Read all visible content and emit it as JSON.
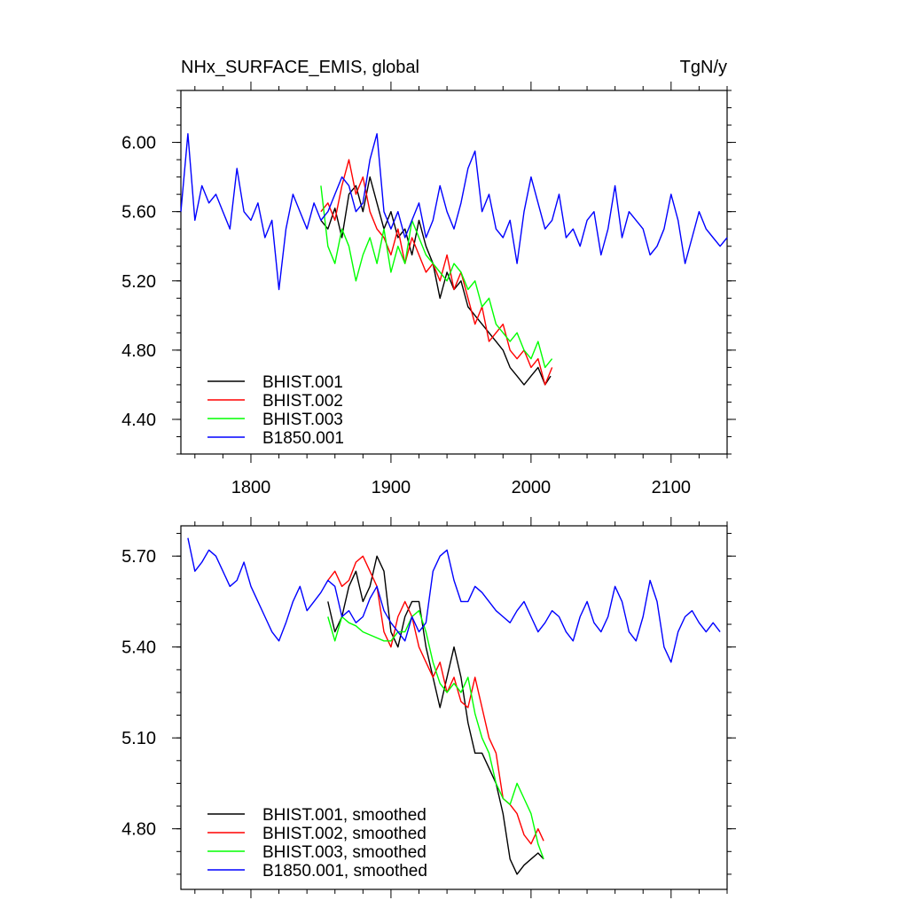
{
  "chart_data": [
    {
      "type": "line",
      "title": "NHx_SURFACE_EMIS, global",
      "units": "TgN/y",
      "xlabel": "",
      "ylabel": "",
      "xlim": [
        1750,
        2140
      ],
      "ylim": [
        4.2,
        6.3
      ],
      "xticks": [
        1800,
        1900,
        2000,
        2100
      ],
      "xtick_labels": [
        "1800",
        "1900",
        "2000",
        "2100"
      ],
      "yticks": [
        4.4,
        4.8,
        5.2,
        5.6,
        6.0
      ],
      "ytick_labels": [
        "4.40",
        "4.80",
        "5.20",
        "5.60",
        "6.00"
      ],
      "legend_position": "bottom-left",
      "grid": false,
      "series": [
        {
          "name": "BHIST.001",
          "color": "#000000",
          "x": [
            1850,
            1855,
            1860,
            1865,
            1870,
            1875,
            1880,
            1885,
            1890,
            1895,
            1900,
            1905,
            1910,
            1915,
            1920,
            1925,
            1930,
            1935,
            1940,
            1945,
            1950,
            1955,
            1960,
            1965,
            1970,
            1975,
            1980,
            1985,
            1990,
            1995,
            2000,
            2005,
            2010,
            2014
          ],
          "y": [
            5.55,
            5.5,
            5.62,
            5.45,
            5.7,
            5.75,
            5.6,
            5.8,
            5.65,
            5.5,
            5.6,
            5.45,
            5.5,
            5.35,
            5.55,
            5.4,
            5.3,
            5.1,
            5.25,
            5.15,
            5.2,
            5.05,
            5.0,
            4.95,
            4.9,
            4.85,
            4.8,
            4.7,
            4.65,
            4.6,
            4.65,
            4.7,
            4.6,
            4.65
          ]
        },
        {
          "name": "BHIST.002",
          "color": "#ff0000",
          "x": [
            1850,
            1855,
            1860,
            1865,
            1870,
            1875,
            1880,
            1885,
            1890,
            1895,
            1900,
            1905,
            1910,
            1915,
            1920,
            1925,
            1930,
            1935,
            1940,
            1945,
            1950,
            1955,
            1960,
            1965,
            1970,
            1975,
            1980,
            1985,
            1990,
            1995,
            2000,
            2005,
            2010,
            2015
          ],
          "y": [
            5.6,
            5.65,
            5.55,
            5.75,
            5.9,
            5.7,
            5.8,
            5.6,
            5.5,
            5.45,
            5.35,
            5.5,
            5.3,
            5.45,
            5.35,
            5.25,
            5.3,
            5.2,
            5.35,
            5.15,
            5.25,
            5.1,
            4.95,
            5.05,
            4.85,
            4.9,
            4.95,
            4.8,
            4.75,
            4.8,
            4.7,
            4.75,
            4.6,
            4.7
          ]
        },
        {
          "name": "BHIST.003",
          "color": "#00ff00",
          "x": [
            1850,
            1855,
            1860,
            1865,
            1870,
            1875,
            1880,
            1885,
            1890,
            1895,
            1900,
            1905,
            1910,
            1915,
            1920,
            1925,
            1930,
            1935,
            1940,
            1945,
            1950,
            1955,
            1960,
            1965,
            1970,
            1975,
            1980,
            1985,
            1990,
            1995,
            2000,
            2005,
            2010,
            2015
          ],
          "y": [
            5.75,
            5.4,
            5.3,
            5.5,
            5.4,
            5.2,
            5.35,
            5.45,
            5.3,
            5.5,
            5.25,
            5.4,
            5.3,
            5.55,
            5.45,
            5.35,
            5.3,
            5.25,
            5.2,
            5.3,
            5.25,
            5.15,
            5.2,
            5.05,
            5.1,
            4.95,
            4.9,
            4.85,
            4.9,
            4.8,
            4.75,
            4.85,
            4.7,
            4.75
          ]
        },
        {
          "name": "B1850.001",
          "color": "#0000ff",
          "x": [
            1750,
            1755,
            1760,
            1765,
            1770,
            1775,
            1780,
            1785,
            1790,
            1795,
            1800,
            1805,
            1810,
            1815,
            1820,
            1825,
            1830,
            1835,
            1840,
            1845,
            1850,
            1855,
            1860,
            1865,
            1870,
            1875,
            1880,
            1885,
            1890,
            1895,
            1900,
            1905,
            1910,
            1915,
            1920,
            1925,
            1930,
            1935,
            1940,
            1945,
            1950,
            1955,
            1960,
            1965,
            1970,
            1975,
            1980,
            1985,
            1990,
            1995,
            2000,
            2005,
            2010,
            2015,
            2020,
            2025,
            2030,
            2035,
            2040,
            2045,
            2050,
            2055,
            2060,
            2065,
            2070,
            2075,
            2080,
            2085,
            2090,
            2095,
            2100,
            2105,
            2110,
            2115,
            2120,
            2125,
            2130,
            2135,
            2140
          ],
          "y": [
            5.6,
            6.05,
            5.55,
            5.75,
            5.65,
            5.7,
            5.6,
            5.5,
            5.85,
            5.6,
            5.55,
            5.65,
            5.45,
            5.55,
            5.15,
            5.5,
            5.7,
            5.6,
            5.5,
            5.65,
            5.55,
            5.6,
            5.7,
            5.8,
            5.75,
            5.6,
            5.65,
            5.9,
            6.05,
            5.6,
            5.5,
            5.6,
            5.45,
            5.55,
            5.65,
            5.45,
            5.55,
            5.75,
            5.6,
            5.5,
            5.65,
            5.85,
            5.95,
            5.6,
            5.7,
            5.5,
            5.45,
            5.55,
            5.3,
            5.6,
            5.8,
            5.65,
            5.5,
            5.55,
            5.7,
            5.45,
            5.5,
            5.4,
            5.55,
            5.6,
            5.35,
            5.5,
            5.75,
            5.45,
            5.6,
            5.55,
            5.5,
            5.35,
            5.4,
            5.5,
            5.7,
            5.55,
            5.3,
            5.45,
            5.6,
            5.5,
            5.45,
            5.4,
            5.45
          ]
        }
      ]
    },
    {
      "type": "line",
      "title": "",
      "xlabel": "",
      "ylabel": "",
      "xlim": [
        1750,
        2140
      ],
      "ylim": [
        4.6,
        5.8
      ],
      "xticks": [
        1800,
        1900,
        2000,
        2100
      ],
      "yticks": [
        4.8,
        5.1,
        5.4,
        5.7
      ],
      "ytick_labels": [
        "4.80",
        "5.10",
        "5.40",
        "5.70"
      ],
      "legend_position": "bottom-left",
      "grid": false,
      "series": [
        {
          "name": "BHIST.001, smoothed",
          "color": "#000000",
          "x": [
            1855,
            1860,
            1865,
            1870,
            1875,
            1880,
            1885,
            1890,
            1895,
            1900,
            1905,
            1910,
            1915,
            1920,
            1925,
            1930,
            1935,
            1940,
            1945,
            1950,
            1955,
            1960,
            1965,
            1970,
            1975,
            1980,
            1985,
            1990,
            1995,
            2000,
            2005,
            2009
          ],
          "y": [
            5.55,
            5.45,
            5.5,
            5.6,
            5.65,
            5.55,
            5.6,
            5.7,
            5.65,
            5.45,
            5.4,
            5.5,
            5.55,
            5.55,
            5.4,
            5.3,
            5.2,
            5.3,
            5.4,
            5.3,
            5.15,
            5.05,
            5.05,
            5.0,
            4.95,
            4.85,
            4.7,
            4.65,
            4.68,
            4.7,
            4.72,
            4.7
          ]
        },
        {
          "name": "BHIST.002, smoothed",
          "color": "#ff0000",
          "x": [
            1855,
            1860,
            1865,
            1870,
            1875,
            1880,
            1885,
            1890,
            1895,
            1900,
            1905,
            1910,
            1915,
            1920,
            1925,
            1930,
            1935,
            1940,
            1945,
            1950,
            1955,
            1960,
            1965,
            1970,
            1975,
            1980,
            1985,
            1990,
            1995,
            2000,
            2005,
            2009
          ],
          "y": [
            5.62,
            5.65,
            5.6,
            5.62,
            5.68,
            5.7,
            5.65,
            5.6,
            5.45,
            5.4,
            5.5,
            5.55,
            5.5,
            5.4,
            5.35,
            5.3,
            5.35,
            5.25,
            5.3,
            5.22,
            5.2,
            5.3,
            5.2,
            5.1,
            5.05,
            4.9,
            4.88,
            4.85,
            4.78,
            4.75,
            4.8,
            4.76
          ]
        },
        {
          "name": "BHIST.003, smoothed",
          "color": "#00ff00",
          "x": [
            1855,
            1860,
            1865,
            1870,
            1875,
            1880,
            1885,
            1890,
            1895,
            1900,
            1905,
            1910,
            1915,
            1920,
            1925,
            1930,
            1935,
            1940,
            1945,
            1950,
            1955,
            1960,
            1965,
            1970,
            1975,
            1980,
            1985,
            1990,
            1995,
            2000,
            2005,
            2009
          ],
          "y": [
            5.5,
            5.42,
            5.5,
            5.48,
            5.47,
            5.45,
            5.44,
            5.43,
            5.42,
            5.42,
            5.45,
            5.45,
            5.5,
            5.52,
            5.45,
            5.35,
            5.28,
            5.25,
            5.28,
            5.25,
            5.3,
            5.18,
            5.1,
            5.05,
            4.95,
            4.9,
            4.88,
            4.95,
            4.9,
            4.85,
            4.75,
            4.7
          ]
        },
        {
          "name": "B1850.001, smoothed",
          "color": "#0000ff",
          "x": [
            1755,
            1760,
            1765,
            1770,
            1775,
            1780,
            1785,
            1790,
            1795,
            1800,
            1805,
            1810,
            1815,
            1820,
            1825,
            1830,
            1835,
            1840,
            1845,
            1850,
            1855,
            1860,
            1865,
            1870,
            1875,
            1880,
            1885,
            1890,
            1895,
            1900,
            1905,
            1910,
            1915,
            1920,
            1925,
            1930,
            1935,
            1940,
            1945,
            1950,
            1955,
            1960,
            1965,
            1970,
            1975,
            1980,
            1985,
            1990,
            1995,
            2000,
            2005,
            2010,
            2015,
            2020,
            2025,
            2030,
            2035,
            2040,
            2045,
            2050,
            2055,
            2060,
            2065,
            2070,
            2075,
            2080,
            2085,
            2090,
            2095,
            2100,
            2105,
            2110,
            2115,
            2120,
            2125,
            2130,
            2135
          ],
          "y": [
            5.76,
            5.65,
            5.68,
            5.72,
            5.7,
            5.65,
            5.6,
            5.62,
            5.68,
            5.6,
            5.55,
            5.5,
            5.45,
            5.42,
            5.48,
            5.55,
            5.6,
            5.52,
            5.55,
            5.58,
            5.62,
            5.6,
            5.5,
            5.52,
            5.48,
            5.5,
            5.56,
            5.6,
            5.52,
            5.48,
            5.45,
            5.42,
            5.5,
            5.45,
            5.48,
            5.65,
            5.7,
            5.72,
            5.62,
            5.55,
            5.55,
            5.6,
            5.58,
            5.55,
            5.52,
            5.5,
            5.48,
            5.52,
            5.55,
            5.5,
            5.45,
            5.48,
            5.52,
            5.5,
            5.45,
            5.42,
            5.5,
            5.55,
            5.48,
            5.45,
            5.5,
            5.6,
            5.55,
            5.45,
            5.42,
            5.5,
            5.62,
            5.55,
            5.4,
            5.35,
            5.45,
            5.5,
            5.52,
            5.48,
            5.45,
            5.48,
            5.45
          ]
        }
      ]
    }
  ]
}
